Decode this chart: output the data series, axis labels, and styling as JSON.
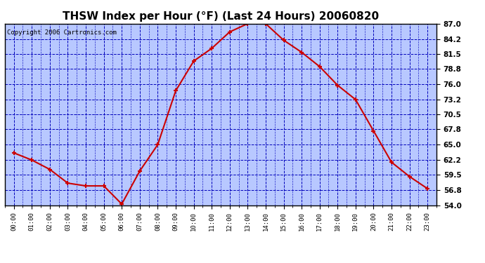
{
  "title": "THSW Index per Hour (°F) (Last 24 Hours) 20060820",
  "copyright": "Copyright 2006 Cartronics.com",
  "hours": [
    "00:00",
    "01:00",
    "02:00",
    "03:00",
    "04:00",
    "05:00",
    "06:00",
    "07:00",
    "08:00",
    "09:00",
    "10:00",
    "11:00",
    "12:00",
    "13:00",
    "14:00",
    "15:00",
    "16:00",
    "17:00",
    "18:00",
    "19:00",
    "20:00",
    "21:00",
    "22:00",
    "23:00"
  ],
  "values": [
    63.5,
    62.2,
    60.5,
    58.0,
    57.5,
    57.5,
    54.2,
    60.2,
    65.0,
    74.8,
    80.2,
    82.5,
    85.5,
    87.0,
    87.0,
    84.0,
    81.8,
    79.2,
    75.8,
    73.2,
    67.5,
    61.8,
    59.2,
    57.0
  ],
  "yticks": [
    54.0,
    56.8,
    59.5,
    62.2,
    65.0,
    67.8,
    70.5,
    73.2,
    76.0,
    78.8,
    81.5,
    84.2,
    87.0
  ],
  "ymin": 54.0,
  "ymax": 87.0,
  "line_color": "#cc0000",
  "marker_color": "#cc0000",
  "plot_bg": "#b8c8ff",
  "grid_color": "#0000bb",
  "outer_bg": "#ffffff",
  "title_fontsize": 11,
  "copyright_fontsize": 6.5
}
